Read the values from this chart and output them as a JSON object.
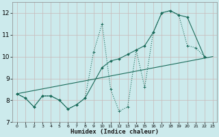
{
  "xlabel": "Humidex (Indice chaleur)",
  "bg_color": "#cceaec",
  "grid_color": "#aad4d8",
  "line_color": "#1a6b5a",
  "xlim": [
    -0.5,
    23.5
  ],
  "ylim": [
    7.0,
    12.5
  ],
  "yticks": [
    7,
    8,
    9,
    10,
    11,
    12
  ],
  "xticks": [
    0,
    1,
    2,
    3,
    4,
    5,
    6,
    7,
    8,
    9,
    10,
    11,
    12,
    13,
    14,
    15,
    16,
    17,
    18,
    19,
    20,
    21,
    22,
    23
  ],
  "line1_x": [
    0,
    1,
    2,
    3,
    4,
    5,
    6,
    7,
    8,
    9,
    10,
    11,
    12,
    13,
    14,
    15,
    16,
    17,
    18,
    19,
    20,
    21,
    22
  ],
  "line1_y": [
    8.3,
    8.1,
    7.7,
    8.2,
    8.2,
    8.0,
    7.6,
    7.8,
    8.1,
    10.2,
    11.5,
    8.5,
    7.5,
    7.7,
    10.3,
    8.6,
    11.1,
    12.0,
    12.1,
    11.9,
    10.5,
    10.4,
    10.0
  ],
  "line2_x": [
    0,
    1,
    2,
    3,
    4,
    5,
    6,
    7,
    8,
    10,
    11,
    12,
    13,
    14,
    15,
    16,
    17,
    18,
    19,
    20,
    22
  ],
  "line2_y": [
    8.3,
    8.1,
    7.7,
    8.2,
    8.2,
    8.0,
    7.6,
    7.8,
    8.1,
    9.5,
    9.8,
    9.9,
    10.1,
    10.3,
    10.5,
    11.1,
    12.0,
    12.1,
    11.9,
    11.8,
    10.0
  ],
  "line3_x": [
    0,
    23
  ],
  "line3_y": [
    8.3,
    10.0
  ]
}
